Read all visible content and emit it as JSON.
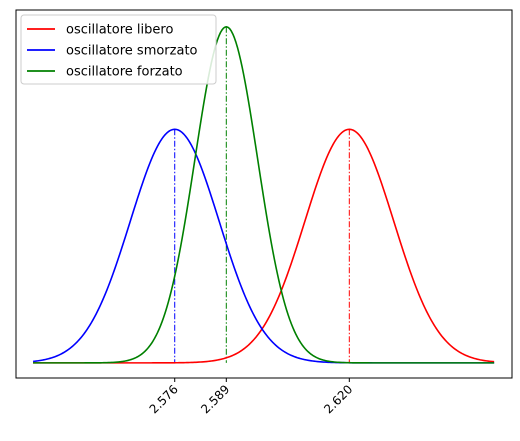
{
  "chart_data": {
    "type": "line",
    "title": "",
    "xlabel": "",
    "ylabel": "",
    "x_range": [
      2.5403,
      2.6565
    ],
    "xlim": [
      2.536,
      2.661
    ],
    "ylim": [
      -0.045,
      1.05
    ],
    "x_ticks": [
      2.576,
      2.589,
      2.62
    ],
    "x_tick_labels": [
      "2.576",
      "2.589",
      "2.620"
    ],
    "y_ticks_shown": false,
    "grid": false,
    "legend_position": "top-left",
    "series": [
      {
        "name": "oscillatore libero",
        "color": "#ff0000",
        "center": 2.62,
        "sigma": 0.0112,
        "peak": 0.695
      },
      {
        "name": "oscillatore smorzato",
        "color": "#0000ff",
        "center": 2.576,
        "sigma": 0.0112,
        "peak": 0.695
      },
      {
        "name": "oscillatore forzato",
        "color": "#008000",
        "center": 2.589,
        "sigma": 0.0079,
        "peak": 1.0
      }
    ],
    "vertical_lines": [
      {
        "x": 2.576,
        "color": "#0000ff",
        "style": "dash-dot"
      },
      {
        "x": 2.589,
        "color": "#008000",
        "style": "dash-dot"
      },
      {
        "x": 2.62,
        "color": "#ff0000",
        "style": "dash-dot"
      }
    ]
  }
}
